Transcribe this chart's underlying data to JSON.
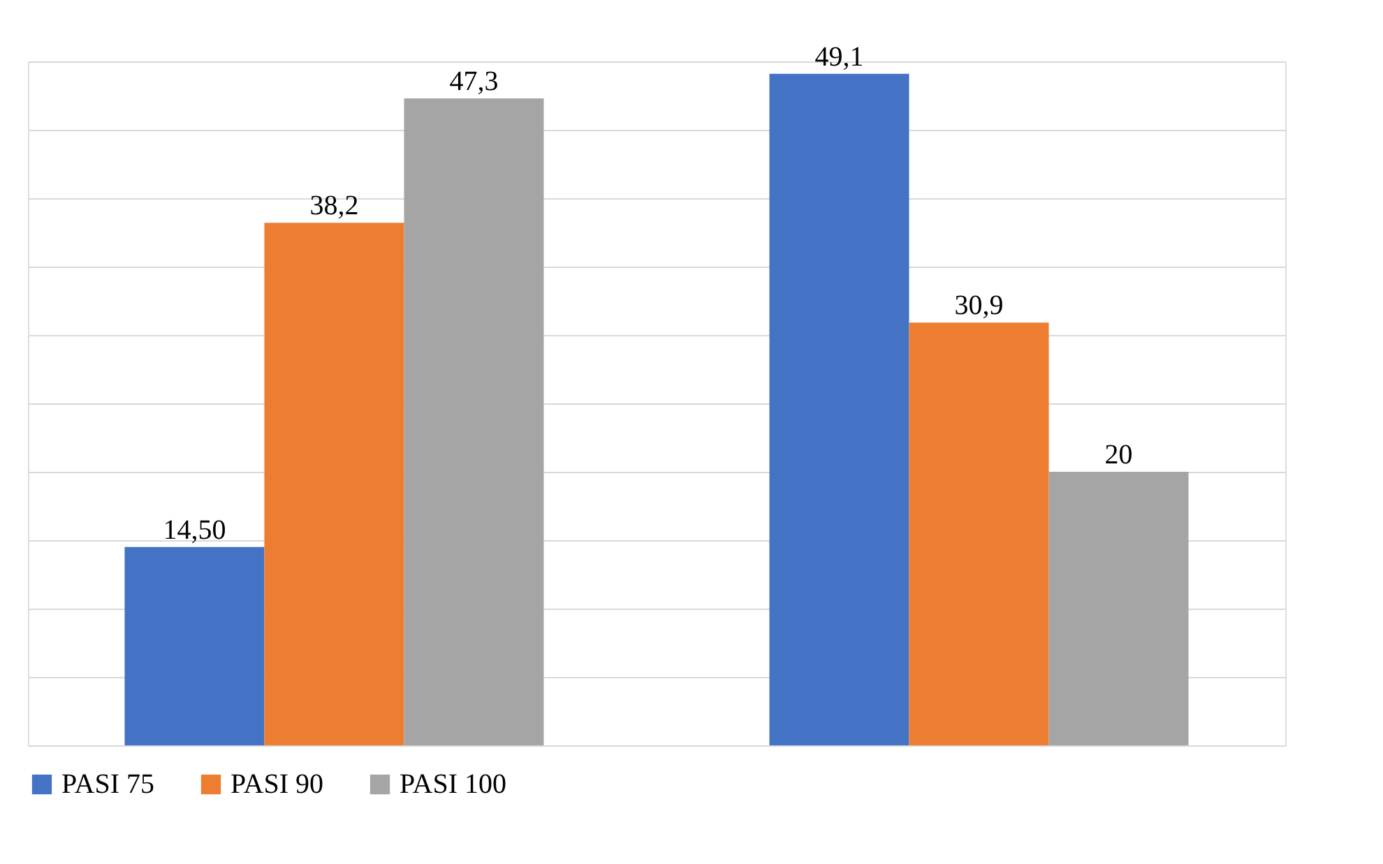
{
  "chart_data": {
    "type": "bar",
    "categories": [
      null,
      null
    ],
    "series": [
      {
        "name": "PASI 75",
        "color": "#4472c4",
        "values": [
          14.5,
          49.1
        ],
        "value_labels": [
          "14,50",
          "49,1"
        ]
      },
      {
        "name": "PASI 90",
        "color": "#ed7d31",
        "values": [
          38.2,
          30.9
        ],
        "value_labels": [
          "38,2",
          "30,9"
        ]
      },
      {
        "name": "PASI 100",
        "color": "#a5a5a5",
        "values": [
          47.3,
          20
        ],
        "value_labels": [
          "47,3",
          "20"
        ]
      }
    ],
    "grid": "y",
    "legend": "bottom",
    "tick_labels": false
  }
}
